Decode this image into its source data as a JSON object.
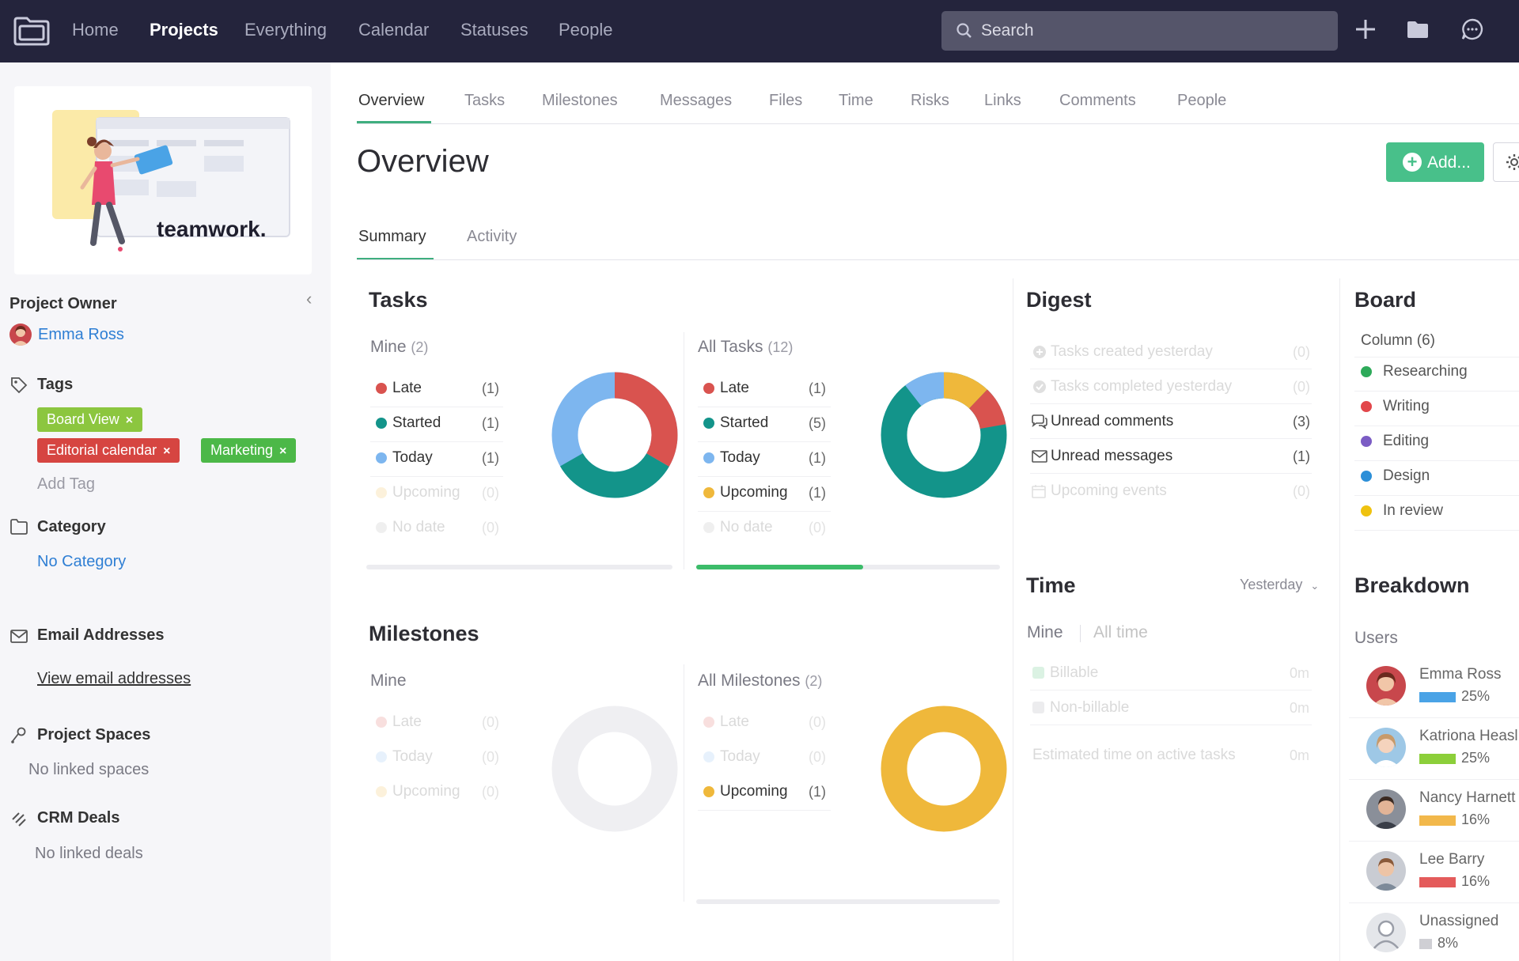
{
  "topnav": {
    "items": [
      "Home",
      "Projects",
      "Everything",
      "Calendar",
      "Statuses",
      "People"
    ],
    "active_index": 1,
    "search_placeholder": "Search",
    "icons": [
      "folder-logo-icon",
      "plus-icon",
      "folder-icon",
      "chat-icon"
    ]
  },
  "sidebar": {
    "promo_brand": "teamwork.",
    "project_owner_label": "Project Owner",
    "owner_name": "Emma Ross",
    "tags_label": "Tags",
    "tags": [
      {
        "label": "Board View",
        "color": "#8cc63f"
      },
      {
        "label": "Editorial calendar",
        "color": "#d64541"
      },
      {
        "label": "Marketing",
        "color": "#4cb848"
      }
    ],
    "add_tag": "Add Tag",
    "category_label": "Category",
    "category_value": "No Category",
    "email_label": "Email Addresses",
    "email_link": "View email addresses",
    "spaces_label": "Project Spaces",
    "spaces_value": "No linked spaces",
    "crm_label": "CRM Deals",
    "crm_value": "No linked deals"
  },
  "main": {
    "tabs": [
      "Overview",
      "Tasks",
      "Milestones",
      "Messages",
      "Files",
      "Time",
      "Risks",
      "Links",
      "Comments",
      "People"
    ],
    "active_tab": 0,
    "title": "Overview",
    "add_button": "Add...",
    "subtabs": [
      "Summary",
      "Activity"
    ],
    "active_subtab": 0
  },
  "colors": {
    "late": "#d9534f",
    "started": "#13948a",
    "today": "#7db6ef",
    "upcoming": "#efb83b",
    "nodate": "#d5d5da",
    "accent": "#48c08a"
  },
  "tasks": {
    "title": "Tasks",
    "mine": {
      "label": "Mine",
      "count": "(2)",
      "rows": [
        {
          "label": "Late",
          "count": "(1)",
          "key": "late"
        },
        {
          "label": "Started",
          "count": "(1)",
          "key": "started"
        },
        {
          "label": "Today",
          "count": "(1)",
          "key": "today"
        },
        {
          "label": "Upcoming",
          "count": "(0)",
          "key": "upcoming"
        },
        {
          "label": "No date",
          "count": "(0)",
          "key": "nodate"
        }
      ]
    },
    "all": {
      "label": "All Tasks",
      "count": "(12)",
      "rows": [
        {
          "label": "Late",
          "count": "(1)",
          "key": "late"
        },
        {
          "label": "Started",
          "count": "(5)",
          "key": "started"
        },
        {
          "label": "Today",
          "count": "(1)",
          "key": "today"
        },
        {
          "label": "Upcoming",
          "count": "(1)",
          "key": "upcoming"
        },
        {
          "label": "No date",
          "count": "(0)",
          "key": "nodate"
        }
      ]
    },
    "all_progress": 0.55
  },
  "milestones": {
    "title": "Milestones",
    "mine": {
      "label": "Mine",
      "rows": [
        {
          "label": "Late",
          "count": "(0)",
          "key": "late"
        },
        {
          "label": "Today",
          "count": "(0)",
          "key": "today"
        },
        {
          "label": "Upcoming",
          "count": "(0)",
          "key": "upcoming"
        }
      ]
    },
    "all": {
      "label": "All Milestones",
      "count": "(2)",
      "rows": [
        {
          "label": "Late",
          "count": "(0)",
          "key": "late"
        },
        {
          "label": "Today",
          "count": "(0)",
          "key": "today"
        },
        {
          "label": "Upcoming",
          "count": "(1)",
          "key": "upcoming"
        }
      ]
    }
  },
  "digest": {
    "title": "Digest",
    "rows": [
      {
        "label": "Tasks created yesterday",
        "count": "(0)",
        "icon": "plus-circle-icon"
      },
      {
        "label": "Tasks completed yesterday",
        "count": "(0)",
        "icon": "check-circle-icon"
      },
      {
        "label": "Unread comments",
        "count": "(3)",
        "icon": "comments-icon"
      },
      {
        "label": "Unread messages",
        "count": "(1)",
        "icon": "envelope-icon"
      },
      {
        "label": "Upcoming events",
        "count": "(0)",
        "icon": "calendar-icon"
      }
    ]
  },
  "time": {
    "title": "Time",
    "filter": "Yesterday",
    "tabs": [
      "Mine",
      "All time"
    ],
    "rows": [
      {
        "label": "Billable",
        "value": "0m",
        "color": "#3cbc6a"
      },
      {
        "label": "Non-billable",
        "value": "0m",
        "color": "#9a9aa4"
      }
    ],
    "estimated_label": "Estimated time on active tasks",
    "estimated_value": "0m"
  },
  "board": {
    "title": "Board",
    "column_label": "Column (6)",
    "columns": [
      {
        "label": "Researching",
        "color": "#2eaa5a"
      },
      {
        "label": "Writing",
        "color": "#e2474b"
      },
      {
        "label": "Editing",
        "color": "#7b5cc4"
      },
      {
        "label": "Design",
        "color": "#2c8fd8"
      },
      {
        "label": "In review",
        "color": "#efc20f"
      }
    ]
  },
  "breakdown": {
    "title": "Breakdown",
    "users_label": "Users",
    "users": [
      {
        "name": "Emma Ross",
        "pct": "25%",
        "color": "#4aa3e6"
      },
      {
        "name": "Katriona Heasl",
        "pct": "25%",
        "color": "#8ccf3a"
      },
      {
        "name": "Nancy Harnett",
        "pct": "16%",
        "color": "#f2b84b"
      },
      {
        "name": "Lee Barry",
        "pct": "16%",
        "color": "#e45b5b"
      },
      {
        "name": "Unassigned",
        "pct": "8%",
        "color": "#cfcfd4"
      }
    ]
  }
}
